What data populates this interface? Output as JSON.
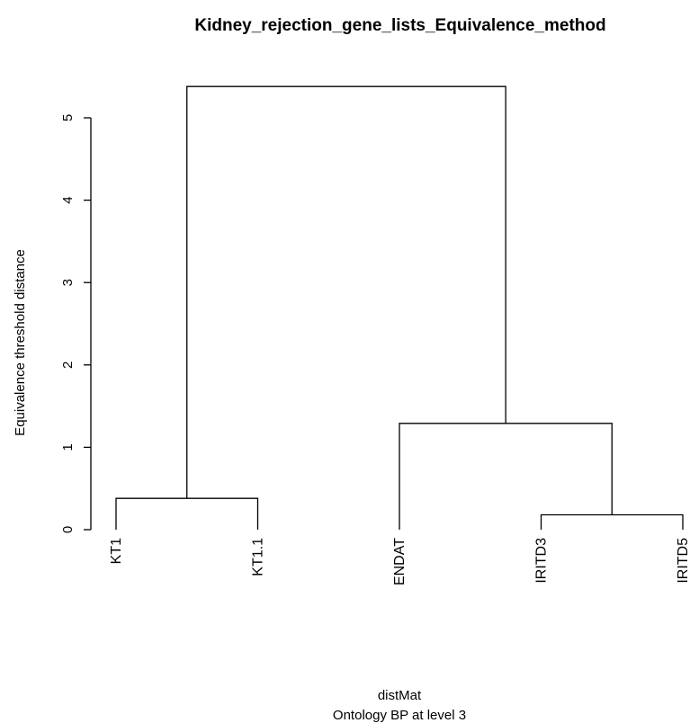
{
  "chart_data": {
    "type": "dendrogram",
    "title": "Kidney_rejection_gene_lists_Equivalence_method",
    "ylabel": "Equivalence threshold distance",
    "xlabel": "distMat",
    "subtitle": "Ontology BP at level 3",
    "ylim": [
      0,
      5.5
    ],
    "yticks": [
      0,
      1,
      2,
      3,
      4,
      5
    ],
    "leaves": [
      "KT1",
      "KT1.1",
      "ENDAT",
      "IRITD3",
      "IRITD5"
    ],
    "merges": [
      {
        "left": "KT1",
        "right": "KT1.1",
        "height": 0.38
      },
      {
        "left": "IRITD3",
        "right": "IRITD5",
        "height": 0.18
      },
      {
        "left": "ENDAT",
        "right": "IRITD3+IRITD5",
        "height": 1.29
      },
      {
        "left": "KT1+KT1.1",
        "right": "ENDAT+IRITD3+IRITD5",
        "height": 5.38
      }
    ]
  }
}
